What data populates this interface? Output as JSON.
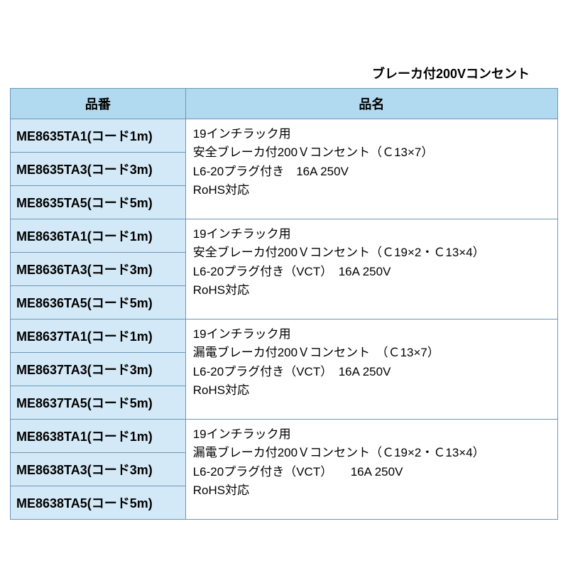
{
  "colors": {
    "header_bg": "#b1daf0",
    "code_col_bg": "#d4e9f7",
    "border": "#6b96ba",
    "text": "#000000",
    "background": "#ffffff"
  },
  "title": "ブレーカ付200Vコンセント",
  "headers": {
    "code": "品番",
    "name": "品名"
  },
  "groups": [
    {
      "codes": [
        "ME8635TA1(コード1m)",
        "ME8635TA3(コード3m)",
        "ME8635TA5(コード5m)"
      ],
      "desc_lines": [
        "19インチラック用",
        "安全ブレーカ付200Ｖコンセント（Ｃ13×7）",
        "L6-20プラグ付き　16A 250V",
        "RoHS対応"
      ]
    },
    {
      "codes": [
        "ME8636TA1(コード1m)",
        "ME8636TA3(コード3m)",
        "ME8636TA5(コード5m)"
      ],
      "desc_lines": [
        "19インチラック用",
        "安全ブレーカ付200Ｖコンセント（Ｃ19×2・Ｃ13×4）",
        "L6-20プラグ付き（VCT）　16A 250V",
        "RoHS対応"
      ]
    },
    {
      "codes": [
        "ME8637TA1(コード1m)",
        "ME8637TA3(コード3m)",
        "ME8637TA5(コード5m)"
      ],
      "desc_lines": [
        "19インチラック用",
        "漏電ブレーカ付200Ｖコンセント　（Ｃ13×7）",
        "L6-20プラグ付き（VCT）　16A 250V",
        "RoHS対応"
      ]
    },
    {
      "codes": [
        "ME8638TA1(コード1m)",
        "ME8638TA3(コード3m)",
        "ME8638TA5(コード5m)"
      ],
      "desc_lines": [
        "19インチラック用",
        "漏電ブレーカ付200Ｖコンセント（Ｃ19×2・Ｃ13×4）",
        "L6-20プラグ付き（VCT）　　16A 250V",
        "RoHS対応"
      ]
    }
  ]
}
